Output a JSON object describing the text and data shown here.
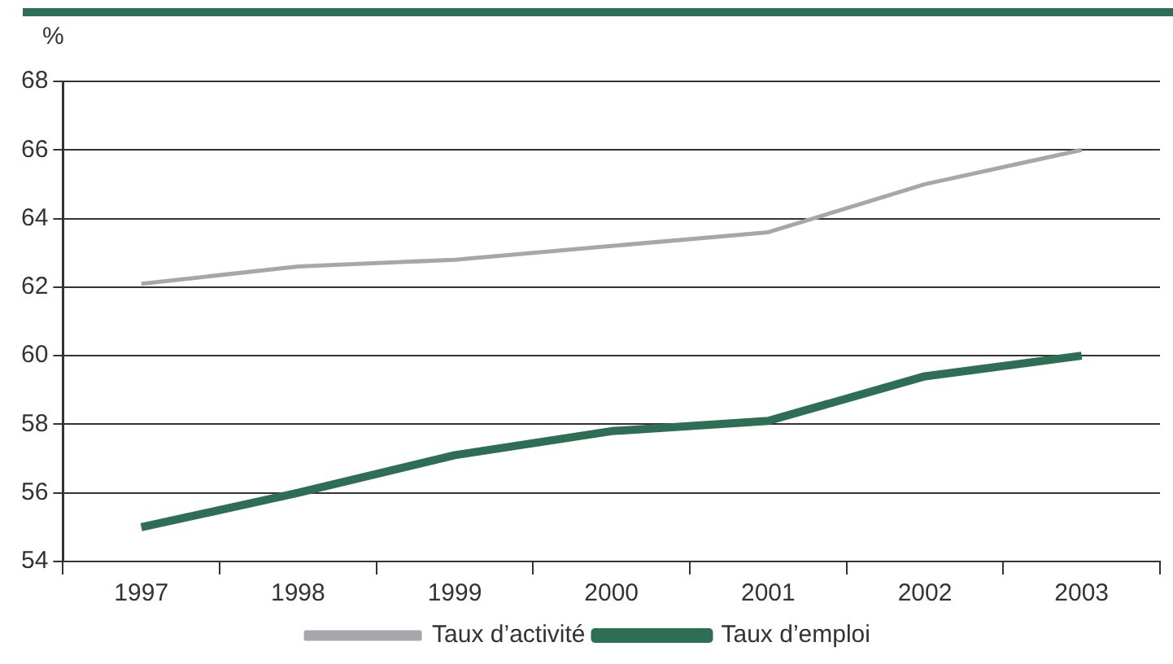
{
  "chart_data": {
    "type": "line",
    "ylabel": "%",
    "categories": [
      "1997",
      "1998",
      "1999",
      "2000",
      "2001",
      "2002",
      "2003"
    ],
    "series": [
      {
        "name": "Taux d’activité",
        "color": "#a7a7ab",
        "values": [
          62.1,
          62.6,
          62.8,
          63.2,
          63.6,
          65.0,
          66.0
        ]
      },
      {
        "name": "Taux d’emploi",
        "color": "#2e6e55",
        "values": [
          55.0,
          56.0,
          57.1,
          57.8,
          58.1,
          59.4,
          60.0
        ]
      }
    ],
    "ylim": [
      54,
      68
    ],
    "yticks": [
      54,
      56,
      58,
      60,
      62,
      64,
      66,
      68
    ],
    "grid": "y",
    "legend": "bottom",
    "marker": "none"
  }
}
